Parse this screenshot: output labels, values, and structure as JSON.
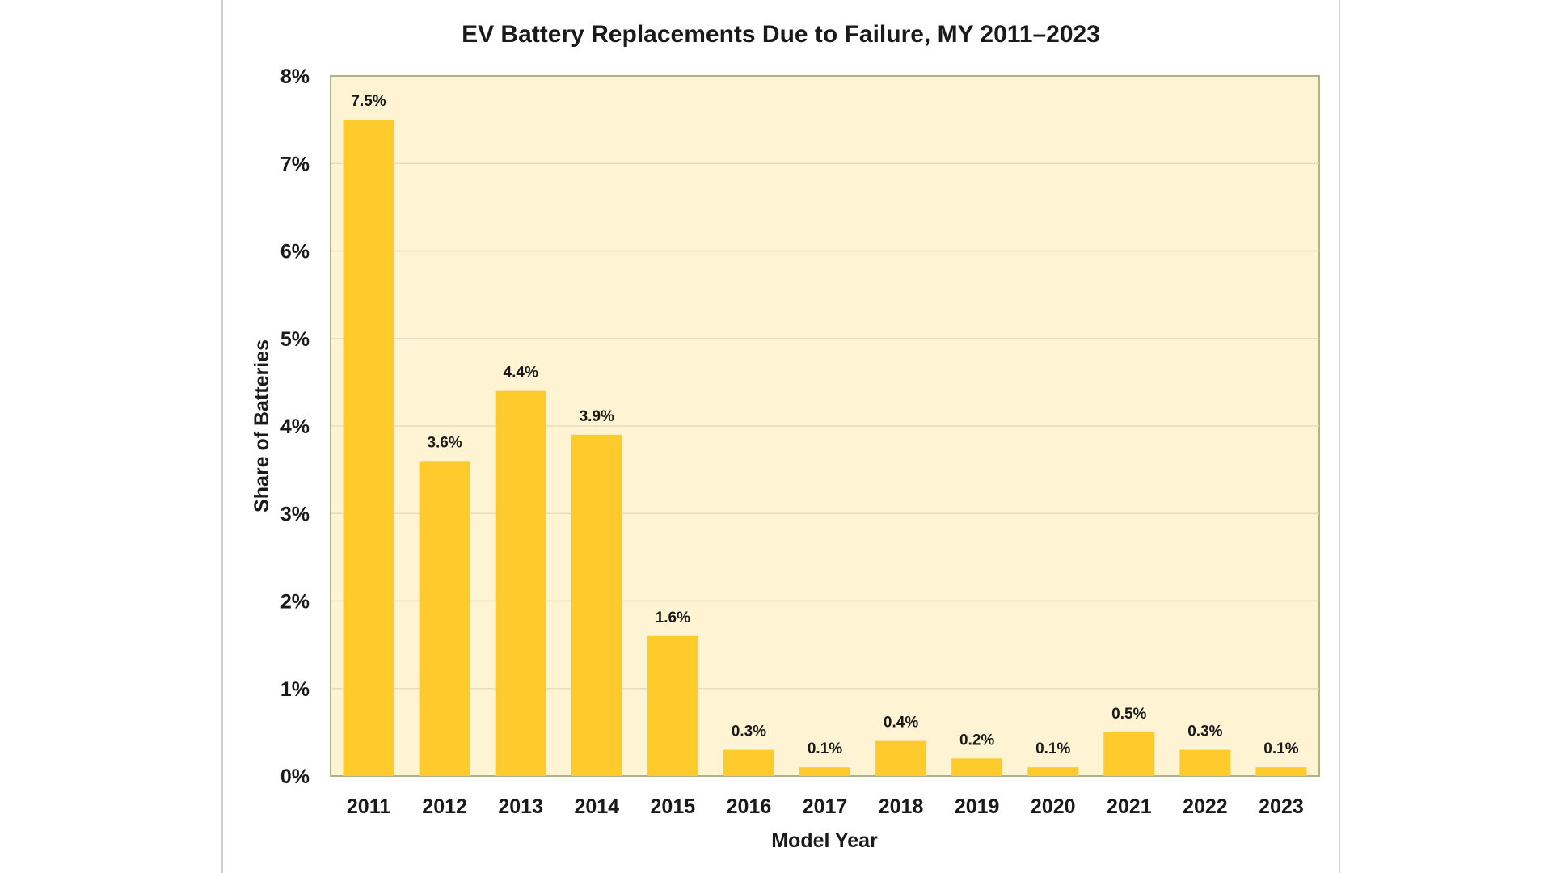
{
  "chart_data": {
    "type": "bar",
    "title": "EV Battery Replacements Due to Failure, MY 2011–2023",
    "xlabel": "Model Year",
    "ylabel": "Share of Batteries",
    "categories": [
      "2011",
      "2012",
      "2013",
      "2014",
      "2015",
      "2016",
      "2017",
      "2018",
      "2019",
      "2020",
      "2021",
      "2022",
      "2023"
    ],
    "values": [
      7.5,
      3.6,
      4.4,
      3.9,
      1.6,
      0.3,
      0.1,
      0.4,
      0.2,
      0.1,
      0.5,
      0.3,
      0.1
    ],
    "data_labels": [
      "7.5%",
      "3.6%",
      "4.4%",
      "3.9%",
      "1.6%",
      "0.3%",
      "0.1%",
      "0.4%",
      "0.2%",
      "0.1%",
      "0.5%",
      "0.3%",
      "0.1%"
    ],
    "ylim": [
      0,
      8
    ],
    "yticks": [
      0,
      1,
      2,
      3,
      4,
      5,
      6,
      7,
      8
    ],
    "ytick_labels": [
      "0%",
      "1%",
      "2%",
      "3%",
      "4%",
      "5%",
      "6%",
      "7%",
      "8%"
    ],
    "grid": true,
    "legend": "none",
    "colors": {
      "bar": "#FFCA2C",
      "plot_background": "#FEF3D2",
      "plot_border": "#A9B48A",
      "gridline": "#E6DCC0",
      "frame": "#D0D0D0"
    }
  }
}
